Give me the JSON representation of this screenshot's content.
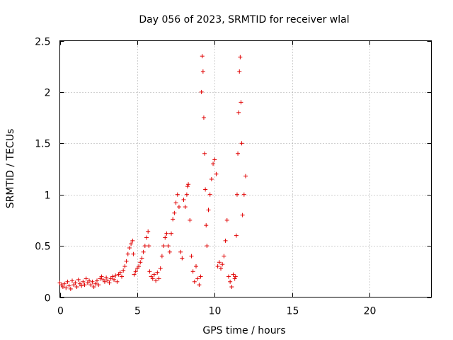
{
  "chart_data": {
    "type": "scatter",
    "title": "Day 056 of 2023, SRMTID for receiver wlal",
    "xlabel": "GPS time / hours",
    "ylabel": "SRMTID / TECUs",
    "xlim": [
      0,
      24
    ],
    "ylim": [
      0,
      2.5
    ],
    "xticks": [
      0,
      5,
      10,
      15,
      20
    ],
    "xtick_labels": [
      "0",
      "5",
      "10",
      "15",
      "20"
    ],
    "yticks": [
      0,
      0.5,
      1,
      1.5,
      2,
      2.5
    ],
    "ytick_labels": [
      "0",
      "0.5",
      "1",
      "1.5",
      "2",
      "2.5"
    ],
    "grid": true,
    "marker": "+",
    "color": "#e00000",
    "series": [
      {
        "name": "SRMTID",
        "points": [
          [
            0.0,
            0.14
          ],
          [
            0.1,
            0.12
          ],
          [
            0.2,
            0.1
          ],
          [
            0.3,
            0.13
          ],
          [
            0.4,
            0.09
          ],
          [
            0.5,
            0.15
          ],
          [
            0.6,
            0.11
          ],
          [
            0.7,
            0.08
          ],
          [
            0.8,
            0.16
          ],
          [
            0.9,
            0.12
          ],
          [
            1.0,
            0.14
          ],
          [
            1.1,
            0.1
          ],
          [
            1.2,
            0.17
          ],
          [
            1.3,
            0.13
          ],
          [
            1.4,
            0.11
          ],
          [
            1.5,
            0.15
          ],
          [
            1.6,
            0.12
          ],
          [
            1.7,
            0.18
          ],
          [
            1.8,
            0.14
          ],
          [
            1.9,
            0.16
          ],
          [
            2.0,
            0.12
          ],
          [
            2.1,
            0.15
          ],
          [
            2.2,
            0.1
          ],
          [
            2.3,
            0.13
          ],
          [
            2.4,
            0.16
          ],
          [
            2.5,
            0.12
          ],
          [
            2.6,
            0.18
          ],
          [
            2.7,
            0.2
          ],
          [
            2.8,
            0.17
          ],
          [
            2.9,
            0.15
          ],
          [
            3.0,
            0.19
          ],
          [
            3.1,
            0.16
          ],
          [
            3.2,
            0.14
          ],
          [
            3.3,
            0.18
          ],
          [
            3.4,
            0.2
          ],
          [
            3.5,
            0.17
          ],
          [
            3.6,
            0.21
          ],
          [
            3.7,
            0.15
          ],
          [
            3.8,
            0.22
          ],
          [
            3.9,
            0.24
          ],
          [
            4.0,
            0.2
          ],
          [
            4.1,
            0.26
          ],
          [
            4.2,
            0.3
          ],
          [
            4.3,
            0.35
          ],
          [
            4.4,
            0.42
          ],
          [
            4.5,
            0.48
          ],
          [
            4.6,
            0.52
          ],
          [
            4.7,
            0.55
          ],
          [
            4.75,
            0.42
          ],
          [
            4.8,
            0.22
          ],
          [
            4.9,
            0.25
          ],
          [
            5.0,
            0.28
          ],
          [
            5.1,
            0.3
          ],
          [
            5.2,
            0.34
          ],
          [
            5.3,
            0.38
          ],
          [
            5.4,
            0.44
          ],
          [
            5.5,
            0.5
          ],
          [
            5.6,
            0.58
          ],
          [
            5.7,
            0.64
          ],
          [
            5.75,
            0.5
          ],
          [
            5.8,
            0.25
          ],
          [
            5.9,
            0.2
          ],
          [
            6.0,
            0.18
          ],
          [
            6.1,
            0.22
          ],
          [
            6.2,
            0.16
          ],
          [
            6.3,
            0.24
          ],
          [
            6.4,
            0.18
          ],
          [
            6.5,
            0.28
          ],
          [
            6.6,
            0.4
          ],
          [
            6.7,
            0.5
          ],
          [
            6.8,
            0.58
          ],
          [
            6.9,
            0.62
          ],
          [
            7.0,
            0.5
          ],
          [
            7.1,
            0.44
          ],
          [
            7.2,
            0.62
          ],
          [
            7.3,
            0.76
          ],
          [
            7.4,
            0.82
          ],
          [
            7.5,
            0.92
          ],
          [
            7.6,
            1.0
          ],
          [
            7.7,
            0.88
          ],
          [
            7.8,
            0.44
          ],
          [
            7.9,
            0.38
          ],
          [
            8.0,
            0.95
          ],
          [
            8.1,
            0.88
          ],
          [
            8.2,
            1.0
          ],
          [
            8.25,
            1.08
          ],
          [
            8.3,
            1.1
          ],
          [
            8.4,
            0.75
          ],
          [
            8.5,
            0.4
          ],
          [
            8.6,
            0.25
          ],
          [
            8.7,
            0.15
          ],
          [
            8.8,
            0.3
          ],
          [
            8.9,
            0.18
          ],
          [
            9.0,
            0.12
          ],
          [
            9.1,
            0.2
          ],
          [
            9.15,
            2.0
          ],
          [
            9.2,
            2.35
          ],
          [
            9.25,
            2.2
          ],
          [
            9.3,
            1.75
          ],
          [
            9.35,
            1.4
          ],
          [
            9.4,
            1.05
          ],
          [
            9.45,
            0.7
          ],
          [
            9.5,
            0.5
          ],
          [
            9.6,
            0.85
          ],
          [
            9.7,
            1.0
          ],
          [
            9.8,
            1.15
          ],
          [
            9.9,
            1.3
          ],
          [
            10.0,
            1.34
          ],
          [
            10.1,
            1.2
          ],
          [
            10.2,
            0.3
          ],
          [
            10.3,
            0.34
          ],
          [
            10.4,
            0.28
          ],
          [
            10.5,
            0.32
          ],
          [
            10.6,
            0.4
          ],
          [
            10.7,
            0.55
          ],
          [
            10.8,
            0.75
          ],
          [
            10.9,
            0.2
          ],
          [
            11.0,
            0.15
          ],
          [
            11.1,
            0.1
          ],
          [
            11.2,
            0.22
          ],
          [
            11.3,
            0.18
          ],
          [
            11.35,
            0.2
          ],
          [
            11.4,
            0.6
          ],
          [
            11.45,
            1.0
          ],
          [
            11.5,
            1.4
          ],
          [
            11.55,
            1.8
          ],
          [
            11.6,
            2.2
          ],
          [
            11.65,
            2.34
          ],
          [
            11.7,
            1.9
          ],
          [
            11.75,
            1.5
          ],
          [
            11.8,
            0.8
          ],
          [
            11.9,
            1.0
          ],
          [
            12.0,
            1.18
          ]
        ]
      }
    ]
  }
}
